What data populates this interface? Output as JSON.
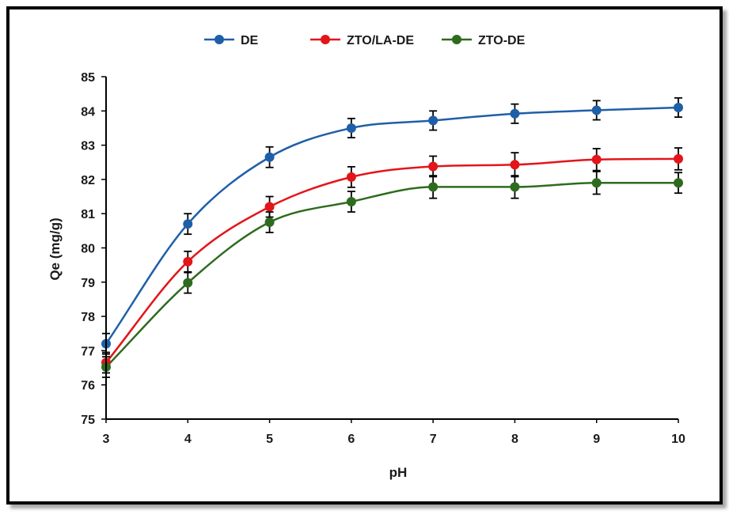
{
  "chart_data": {
    "type": "line",
    "title": "",
    "xlabel": "pH",
    "ylabel": "Qe (mg/g)",
    "x": [
      3,
      4,
      5,
      6,
      7,
      8,
      9,
      10
    ],
    "xlim": [
      3,
      10
    ],
    "ylim": [
      75,
      85
    ],
    "yticks": [
      75,
      76,
      77,
      78,
      79,
      80,
      81,
      82,
      83,
      84,
      85
    ],
    "xticks": [
      3,
      4,
      5,
      6,
      7,
      8,
      9,
      10
    ],
    "grid": false,
    "legend_position": "top",
    "series": [
      {
        "name": "DE",
        "color": "#1f5fa8",
        "values": [
          77.2,
          80.7,
          82.65,
          83.5,
          83.72,
          83.92,
          84.02,
          84.1
        ],
        "errors": [
          0.3,
          0.3,
          0.3,
          0.28,
          0.28,
          0.28,
          0.28,
          0.28
        ]
      },
      {
        "name": "ZTO/LA-DE",
        "color": "#e3151a",
        "values": [
          76.65,
          79.6,
          81.2,
          82.07,
          82.38,
          82.43,
          82.58,
          82.6
        ],
        "errors": [
          0.3,
          0.3,
          0.3,
          0.3,
          0.3,
          0.35,
          0.32,
          0.32
        ]
      },
      {
        "name": "ZTO-DE",
        "color": "#2e6b1e",
        "values": [
          76.52,
          78.98,
          80.75,
          81.35,
          81.78,
          81.78,
          81.9,
          81.9
        ],
        "errors": [
          0.3,
          0.3,
          0.3,
          0.3,
          0.33,
          0.33,
          0.33,
          0.3
        ]
      }
    ]
  }
}
